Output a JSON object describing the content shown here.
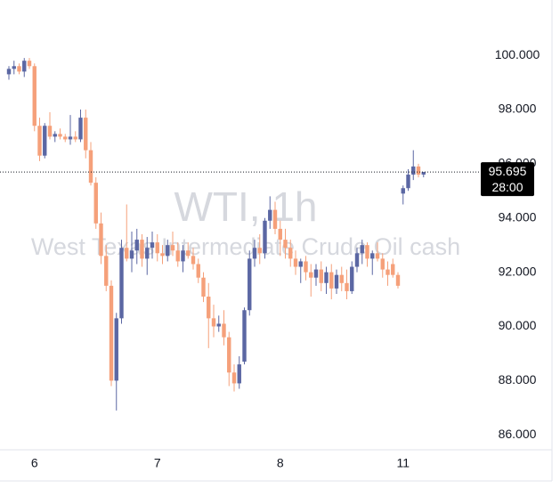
{
  "chart_data": {
    "type": "candlestick",
    "watermark_title": "WTI, 1h",
    "watermark_subtitle": "West Texas Intermediate Crude Oil cash",
    "categories": [
      null,
      null,
      null,
      null,
      null,
      "6",
      null,
      null,
      null,
      null,
      null,
      null,
      null,
      null,
      null,
      null,
      null,
      null,
      null,
      null,
      null,
      null,
      null,
      null,
      null,
      null,
      null,
      null,
      null,
      "7",
      null,
      null,
      null,
      null,
      null,
      null,
      null,
      null,
      null,
      null,
      null,
      null,
      null,
      null,
      null,
      null,
      null,
      null,
      null,
      null,
      null,
      null,
      null,
      "8",
      null,
      null,
      null,
      null,
      null,
      null,
      null,
      null,
      null,
      null,
      null,
      null,
      null,
      null,
      null,
      null,
      null,
      null,
      null,
      null,
      null,
      null,
      null,
      "11",
      null,
      null,
      null,
      null
    ],
    "open": [
      99.3,
      99.5,
      99.6,
      99.4,
      99.8,
      99.6,
      97.4,
      96.3,
      97.4,
      97.0,
      97.1,
      97.0,
      96.9,
      97.0,
      96.9,
      97.7,
      96.5,
      95.3,
      93.8,
      92.6,
      91.5,
      88.0,
      90.3,
      92.9,
      92.5,
      92.8,
      93.2,
      92.5,
      92.9,
      93.1,
      92.7,
      92.6,
      93.0,
      92.8,
      92.4,
      92.8,
      92.6,
      92.3,
      91.8,
      91.1,
      90.3,
      90.0,
      90.1,
      89.6,
      88.3,
      87.9,
      88.7,
      90.6,
      92.5,
      92.9,
      92.7,
      93.9,
      94.3,
      93.6,
      93.2,
      92.9,
      92.5,
      92.2,
      92.4,
      92.0,
      91.8,
      92.1,
      91.6,
      92.0,
      91.4,
      91.9,
      91.6,
      91.3,
      92.2,
      92.7,
      93.0,
      92.5,
      92.7,
      92.5,
      92.1,
      92.3,
      91.9,
      94.9,
      95.1,
      95.6,
      95.9,
      95.6
    ],
    "high": [
      99.6,
      99.8,
      99.7,
      99.9,
      99.9,
      99.7,
      97.7,
      97.5,
      97.9,
      97.2,
      97.3,
      97.1,
      97.8,
      97.2,
      98.0,
      98.0,
      96.8,
      95.5,
      94.2,
      93.0,
      91.7,
      90.5,
      93.2,
      94.5,
      93.5,
      93.6,
      93.4,
      93.3,
      93.5,
      93.4,
      93.0,
      93.2,
      93.5,
      93.1,
      93.0,
      93.1,
      92.9,
      92.5,
      92.0,
      91.6,
      90.8,
      90.4,
      90.6,
      89.8,
      88.6,
      88.9,
      90.7,
      92.8,
      93.2,
      93.4,
      94.0,
      94.8,
      94.6,
      93.9,
      93.6,
      93.2,
      92.8,
      92.5,
      92.6,
      92.3,
      92.3,
      92.4,
      92.2,
      92.3,
      92.1,
      92.2,
      92.1,
      92.4,
      92.9,
      93.2,
      93.1,
      92.8,
      93.1,
      92.7,
      92.4,
      92.5,
      92.0,
      95.2,
      95.8,
      96.5,
      96.0,
      95.7
    ],
    "low": [
      99.1,
      99.3,
      99.3,
      99.2,
      99.5,
      97.2,
      96.1,
      96.2,
      96.9,
      96.8,
      96.9,
      96.8,
      96.7,
      96.8,
      96.8,
      96.2,
      95.2,
      93.6,
      92.3,
      91.3,
      87.8,
      86.9,
      90.1,
      92.4,
      92.0,
      92.3,
      92.2,
      91.9,
      92.5,
      92.4,
      92.3,
      92.4,
      92.6,
      92.2,
      92.0,
      92.5,
      92.1,
      91.6,
      90.9,
      89.2,
      89.6,
      89.8,
      89.3,
      87.8,
      87.6,
      87.7,
      88.6,
      90.4,
      92.2,
      92.3,
      92.5,
      93.6,
      93.4,
      92.6,
      92.5,
      92.2,
      91.9,
      91.6,
      91.7,
      91.1,
      91.5,
      91.3,
      91.2,
      91.0,
      91.2,
      91.3,
      91.0,
      91.2,
      92.0,
      92.3,
      92.2,
      91.9,
      92.4,
      91.8,
      91.5,
      91.8,
      91.4,
      94.5,
      95.0,
      95.4,
      95.5,
      95.5
    ],
    "close": [
      99.5,
      99.6,
      99.4,
      99.8,
      99.6,
      97.4,
      96.3,
      97.4,
      97.0,
      97.1,
      97.0,
      96.9,
      97.0,
      96.9,
      97.7,
      96.5,
      95.3,
      93.8,
      92.6,
      91.5,
      88.0,
      90.3,
      92.9,
      92.5,
      92.8,
      93.2,
      92.5,
      92.9,
      93.1,
      92.7,
      92.6,
      93.0,
      92.8,
      92.4,
      92.8,
      92.6,
      92.3,
      91.8,
      91.1,
      90.3,
      90.0,
      90.1,
      89.6,
      88.3,
      87.9,
      88.6,
      90.6,
      92.5,
      92.9,
      92.7,
      93.9,
      94.3,
      93.6,
      93.2,
      92.9,
      92.5,
      92.2,
      92.4,
      92.0,
      91.8,
      92.1,
      91.6,
      92.0,
      91.4,
      91.9,
      91.6,
      91.3,
      92.2,
      92.7,
      93.0,
      92.5,
      92.7,
      92.5,
      92.1,
      91.9,
      91.9,
      91.5,
      95.1,
      95.6,
      95.9,
      95.6,
      95.695
    ],
    "up_color": "#5b67a3",
    "down_color": "#f5a07a",
    "countdown": "28:00",
    "ylim": [
      85.45,
      102.04
    ],
    "yticks": [
      {
        "value": 86,
        "label": "86.000"
      },
      {
        "value": 88,
        "label": "88.000"
      },
      {
        "value": 90,
        "label": "90.000"
      },
      {
        "value": 92,
        "label": "92.000"
      },
      {
        "value": 94,
        "label": "94.000"
      },
      {
        "value": 96,
        "label": "96.000"
      },
      {
        "value": 98,
        "label": "98.000"
      },
      {
        "value": 100,
        "label": "100.000"
      }
    ]
  }
}
